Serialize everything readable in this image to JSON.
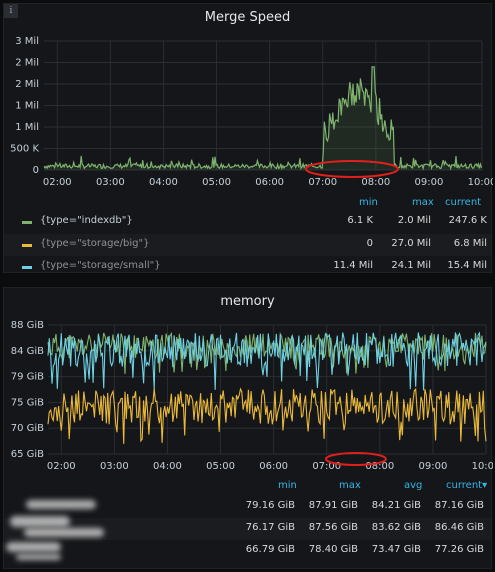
{
  "panels": {
    "merge": {
      "title": "Merge Speed",
      "info_icon": "i"
    },
    "memory": {
      "title": "memory"
    }
  },
  "chart_data": [
    {
      "type": "line",
      "title": "Merge Speed",
      "x": [
        "02:00",
        "03:00",
        "04:00",
        "05:00",
        "06:00",
        "07:00",
        "08:00",
        "09:00",
        "10:00"
      ],
      "y_ticks": [
        "0",
        "500 K",
        "1 Mil",
        "1 Mil",
        "2 Mil",
        "2 Mil",
        "3 Mil"
      ],
      "ylim": [
        0,
        2500000
      ],
      "series": [
        {
          "name": "{type=\"indexdb\"}",
          "color": "#7eb26d",
          "baseline_range": [
            30000,
            120000
          ],
          "burst": {
            "start": "07:00",
            "end": "08:20",
            "peak": 2000000
          },
          "min": "6.1 K",
          "max": "2.0 Mil",
          "current": "247.6 K"
        },
        {
          "name": "{type=\"storage/big\"}",
          "color": "#eab839",
          "min": "0",
          "max": "27.0 Mil",
          "current": "6.8 Mil"
        },
        {
          "name": "{type=\"storage/small\"}",
          "color": "#6ed0e0",
          "min": "11.4 Mil",
          "max": "24.1 Mil",
          "current": "15.4 Mil"
        }
      ],
      "legend_columns": [
        "min",
        "max",
        "current"
      ],
      "annotation": "red ellipse around 07:00–08:00"
    },
    {
      "type": "line",
      "title": "memory",
      "x": [
        "02:00",
        "03:00",
        "04:00",
        "05:00",
        "06:00",
        "07:00",
        "08:00",
        "09:00",
        "10:00"
      ],
      "y_ticks": [
        "65 GiB",
        "70 GiB",
        "75 GiB",
        "79 GiB",
        "84 GiB",
        "88 GiB"
      ],
      "ylim": [
        65,
        88
      ],
      "series": [
        {
          "color": "#7eb26d",
          "range": [
            79.16,
            87.91
          ],
          "avg": 84.21,
          "min": "79.16 GiB",
          "max": "87.91 GiB",
          "avg_label": "84.21 GiB",
          "current": "87.16 GiB"
        },
        {
          "color": "#6ed0e0",
          "range": [
            76.17,
            87.56
          ],
          "avg": 83.62,
          "min": "76.17 GiB",
          "max": "87.56 GiB",
          "avg_label": "83.62 GiB",
          "current": "86.46 GiB"
        },
        {
          "color": "#eab839",
          "range": [
            66.79,
            78.4
          ],
          "avg": 73.47,
          "min": "66.79 GiB",
          "max": "78.40 GiB",
          "avg_label": "73.47 GiB",
          "current": "77.26 GiB"
        }
      ],
      "legend_columns": [
        "min",
        "max",
        "avg",
        "current"
      ],
      "sort_indicator": "▾",
      "annotation": "red ellipse around 07:00–08:00"
    }
  ]
}
